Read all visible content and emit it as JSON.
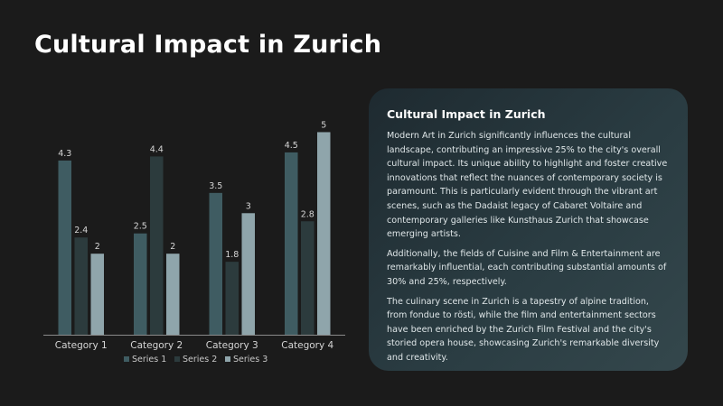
{
  "slide": {
    "title": "Cultural Impact in Zurich"
  },
  "panel": {
    "heading": "Cultural Impact in Zurich",
    "paragraphs": [
      "Modern Art in Zurich significantly influences the cultural landscape, contributing an impressive 25% to the city's overall cultural impact. Its unique ability to highlight and foster creative innovations that reflect the nuances of contemporary society is paramount. This is particularly evident through the vibrant art scenes, such as the Dadaist legacy of Cabaret Voltaire and contemporary galleries like Kunsthaus Zurich that showcase emerging artists.",
      "Additionally, the fields of Cuisine and Film & Entertainment are remarkably influential, each contributing substantial amounts of 30% and 25%, respectively.",
      "The culinary scene in Zurich is a tapestry of alpine tradition, from fondue to rösti, while the film and entertainment sectors have been enriched by the Zurich Film Festival and the city's storied opera house, showcasing Zurich's remarkable diversity and creativity."
    ]
  },
  "chart_data": {
    "type": "bar",
    "title": "",
    "xlabel": "",
    "ylabel": "",
    "categories": [
      "Category 1",
      "Category 2",
      "Category 3",
      "Category 4"
    ],
    "series": [
      {
        "name": "Series 1",
        "values": [
          4.3,
          2.5,
          3.5,
          4.5
        ],
        "color": "#3f5c62"
      },
      {
        "name": "Series 2",
        "values": [
          2.4,
          4.4,
          1.8,
          2.8
        ],
        "color": "#2c3b3d"
      },
      {
        "name": "Series 3",
        "values": [
          2,
          2,
          3,
          5
        ],
        "color": "#8fa5ab"
      }
    ],
    "ylim": [
      0,
      5.3
    ],
    "grid": false,
    "legend": "bottom",
    "data_labels": true
  }
}
